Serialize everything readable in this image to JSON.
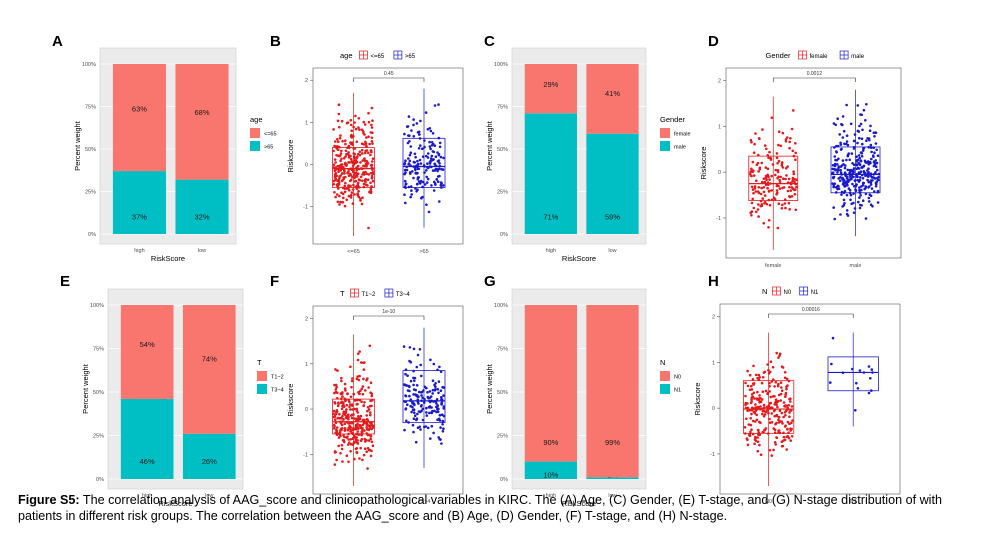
{
  "caption": {
    "label": "Figure S5:",
    "text": "The correlation analysis of AAG_score and clinicopathological variables in KIRC. The (A) Age, (C) Gender, (E) T-stage, and (G) N-stage distribution of with patients in different risk groups. The correlation between the AAG_score and (B) Age, (D) Gender, (F) T-stage, and (H) N-stage."
  },
  "colors": {
    "red": "#f8766d",
    "teal": "#00bfc4",
    "box_red": "#e41a1c",
    "box_blue": "#1a1acc"
  },
  "chart_data": [
    {
      "id": "A",
      "type": "bar",
      "stacked": true,
      "panel_label": "A",
      "categories": [
        "high",
        "low"
      ],
      "xlabel": "RiskScore",
      "ylabel": "Percent weight",
      "ylim": [
        0,
        1
      ],
      "yticks": [
        "0%",
        "25%",
        "50%",
        "75%",
        "100%"
      ],
      "legend_title": "age",
      "legend_position": "right",
      "series": [
        {
          "name": ">65",
          "values": [
            0.37,
            0.32
          ],
          "labels": [
            "37%",
            "32%"
          ],
          "color": "#00bfc4"
        },
        {
          "name": "<=65",
          "values": [
            0.63,
            0.68
          ],
          "labels": [
            "63%",
            "68%"
          ],
          "color": "#f8766d"
        }
      ]
    },
    {
      "id": "B",
      "type": "box",
      "panel_label": "B",
      "categories": [
        "<=65",
        ">65"
      ],
      "ylabel": "Riskscore",
      "ylim": [
        -1.7,
        2.1
      ],
      "yticks": [
        -1,
        0,
        1,
        2
      ],
      "legend_title": "age",
      "legend_entries": [
        "<=65",
        ">65"
      ],
      "legend_position": "top",
      "p_value": "0.45",
      "groups": [
        {
          "name": "<=65",
          "color": "#e41a1c",
          "q1": -0.55,
          "median": -0.1,
          "q3": 0.4,
          "min": -1.7,
          "max": 1.7,
          "n": 330
        },
        {
          "name": ">65",
          "color": "#1a1acc",
          "q1": -0.55,
          "median": -0.05,
          "q3": 0.62,
          "min": -1.5,
          "max": 1.8,
          "n": 180
        }
      ]
    },
    {
      "id": "C",
      "type": "bar",
      "stacked": true,
      "panel_label": "C",
      "categories": [
        "high",
        "low"
      ],
      "xlabel": "RiskScore",
      "ylabel": "Percent weight",
      "ylim": [
        0,
        1
      ],
      "yticks": [
        "0%",
        "25%",
        "50%",
        "75%",
        "100%"
      ],
      "legend_title": "Gender",
      "legend_position": "right",
      "series": [
        {
          "name": "male",
          "values": [
            0.71,
            0.59
          ],
          "labels": [
            "71%",
            "59%"
          ],
          "color": "#00bfc4"
        },
        {
          "name": "female",
          "values": [
            0.29,
            0.41
          ],
          "labels": [
            "29%",
            "41%"
          ],
          "color": "#f8766d"
        }
      ]
    },
    {
      "id": "D",
      "type": "box",
      "panel_label": "D",
      "categories": [
        "female",
        "male"
      ],
      "ylabel": "Riskscore",
      "ylim": [
        -1.7,
        2.1
      ],
      "yticks": [
        -1,
        0,
        1,
        2
      ],
      "legend_title": "Gender",
      "legend_entries": [
        "female",
        "male"
      ],
      "legend_position": "top",
      "p_value": "0.0012",
      "groups": [
        {
          "name": "female",
          "color": "#e41a1c",
          "q1": -0.62,
          "median": -0.25,
          "q3": 0.35,
          "min": -1.7,
          "max": 1.65,
          "n": 180
        },
        {
          "name": "male",
          "color": "#1a1acc",
          "q1": -0.45,
          "median": -0.05,
          "q3": 0.55,
          "min": -1.4,
          "max": 1.8,
          "n": 330
        }
      ]
    },
    {
      "id": "E",
      "type": "bar",
      "stacked": true,
      "panel_label": "E",
      "categories": [
        "high",
        "low"
      ],
      "xlabel": "RiskScore",
      "ylabel": "Percent weight",
      "ylim": [
        0,
        1
      ],
      "yticks": [
        "0%",
        "25%",
        "50%",
        "75%",
        "100%"
      ],
      "legend_title": "T",
      "legend_position": "right",
      "series": [
        {
          "name": "T3~4",
          "values": [
            0.46,
            0.26
          ],
          "labels": [
            "46%",
            "26%"
          ],
          "color": "#00bfc4"
        },
        {
          "name": "T1~2",
          "values": [
            0.54,
            0.74
          ],
          "labels": [
            "54%",
            "74%"
          ],
          "color": "#f8766d"
        }
      ]
    },
    {
      "id": "F",
      "type": "box",
      "panel_label": "F",
      "categories": [
        "T1~2",
        "T3~4"
      ],
      "ylabel": "Riskscore",
      "ylim": [
        -1.7,
        2.1
      ],
      "yticks": [
        -1,
        0,
        1,
        2
      ],
      "legend_title": "T",
      "legend_entries": [
        "T1~2",
        "T3~4"
      ],
      "legend_position": "top",
      "p_value": "1e-10",
      "groups": [
        {
          "name": "T1~2",
          "color": "#e41a1c",
          "q1": -0.55,
          "median": -0.28,
          "q3": 0.22,
          "min": -1.7,
          "max": 1.65,
          "n": 330
        },
        {
          "name": "T3~4",
          "color": "#1a1acc",
          "q1": -0.3,
          "median": 0.18,
          "q3": 0.85,
          "min": -1.3,
          "max": 1.8,
          "n": 180
        }
      ]
    },
    {
      "id": "G",
      "type": "bar",
      "stacked": true,
      "panel_label": "G",
      "categories": [
        "high",
        "low"
      ],
      "xlabel": "RiskScore",
      "ylabel": "Percent weight",
      "ylim": [
        0,
        1
      ],
      "yticks": [
        "0%",
        "25%",
        "50%",
        "75%",
        "100%"
      ],
      "legend_title": "N",
      "legend_position": "right",
      "series": [
        {
          "name": "N1",
          "values": [
            0.1,
            0.01
          ],
          "labels": [
            "10%",
            "1%"
          ],
          "color": "#00bfc4"
        },
        {
          "name": "N0",
          "values": [
            0.9,
            0.99
          ],
          "labels": [
            "90%",
            "99%"
          ],
          "color": "#f8766d"
        }
      ]
    },
    {
      "id": "H",
      "type": "box",
      "panel_label": "H",
      "categories": [
        "N0",
        "N1"
      ],
      "ylabel": "Riskscore",
      "ylim": [
        -1.7,
        2.1
      ],
      "yticks": [
        -1,
        0,
        1,
        2
      ],
      "legend_title": "N",
      "legend_entries": [
        "N0",
        "N1"
      ],
      "legend_position": "top",
      "p_value": "0.00016",
      "groups": [
        {
          "name": "N0",
          "color": "#e41a1c",
          "q1": -0.55,
          "median": -0.02,
          "q3": 0.6,
          "min": -1.7,
          "max": 1.65,
          "n": 260
        },
        {
          "name": "N1",
          "color": "#1a1acc",
          "q1": 0.38,
          "median": 0.78,
          "q3": 1.12,
          "min": -0.4,
          "max": 1.65,
          "n": 16
        }
      ]
    }
  ]
}
